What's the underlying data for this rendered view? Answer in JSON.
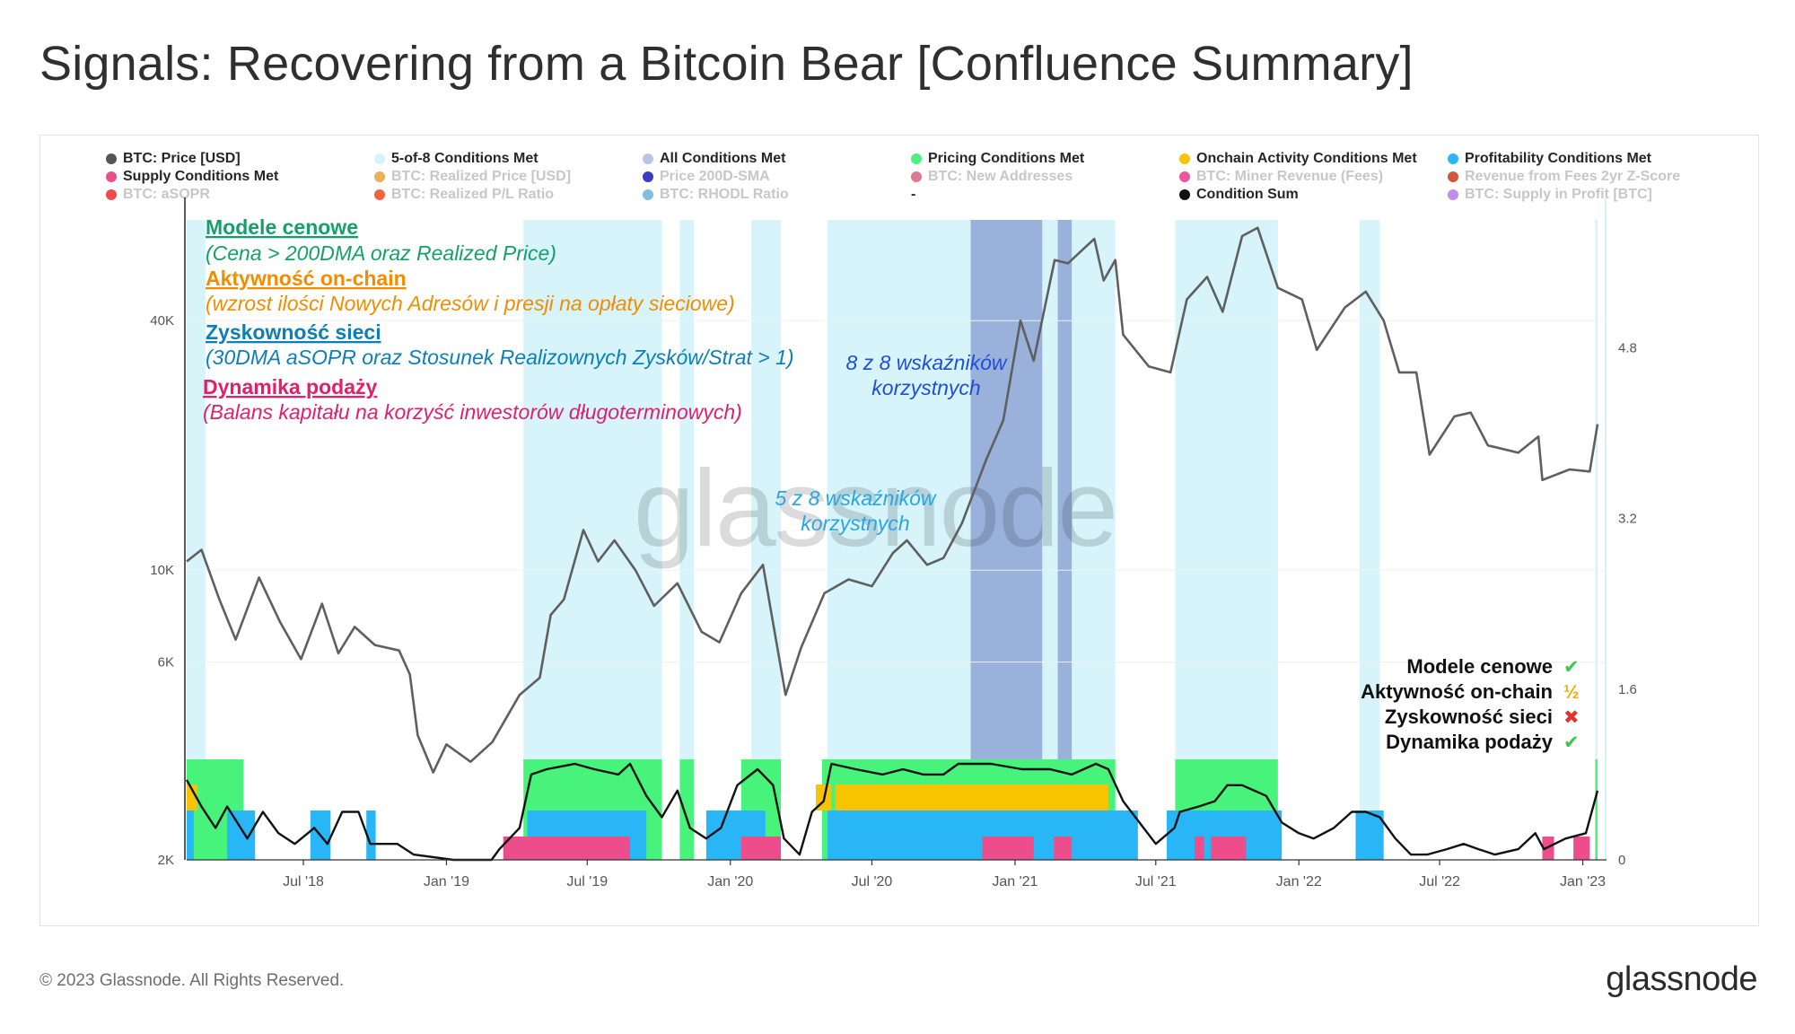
{
  "title": "Signals: Recovering from a Bitcoin Bear [Confluence Summary]",
  "legend": [
    {
      "label": "BTC: Price [USD]",
      "color": "#555555",
      "active": true
    },
    {
      "label": "5-of-8 Conditions Met",
      "color": "#d4f3fa",
      "active": true
    },
    {
      "label": "All Conditions Met",
      "color": "#b9c5e6",
      "active": true
    },
    {
      "label": "Pricing Conditions Met",
      "color": "#47f37a",
      "active": true
    },
    {
      "label": "Onchain Activity Conditions Met",
      "color": "#f6c400",
      "active": true
    },
    {
      "label": "Profitability Conditions Met",
      "color": "#29b6f6",
      "active": true
    },
    {
      "label": "Supply Conditions Met",
      "color": "#ee4d8b",
      "active": true
    },
    {
      "label": "BTC: Realized Price [USD]",
      "color": "#e8a23a",
      "active": false
    },
    {
      "label": "Price 200D-SMA",
      "color": "#1a1ab8",
      "active": false
    },
    {
      "label": "BTC: New Addresses",
      "color": "#d9607f",
      "active": false
    },
    {
      "label": "BTC: Miner Revenue (Fees)",
      "color": "#e8388f",
      "active": false
    },
    {
      "label": "Revenue from Fees 2yr Z-Score",
      "color": "#cc3a1a",
      "active": false
    },
    {
      "label": "BTC: aSOPR",
      "color": "#ee2a2a",
      "active": false
    },
    {
      "label": "BTC: Realized P/L Ratio",
      "color": "#f04a1a",
      "active": false
    },
    {
      "label": "BTC: RHODL Ratio",
      "color": "#6ab4d8",
      "active": false
    },
    {
      "label": "-",
      "color": "",
      "active": true
    },
    {
      "label": "Condition Sum",
      "color": "#111111",
      "active": true
    },
    {
      "label": "BTC: Supply in Profit [BTC]",
      "color": "#b47be8",
      "active": false
    }
  ],
  "annotations": {
    "pricing_title": "Modele cenowe",
    "pricing_desc": "(Cena > 200DMA oraz Realized Price)",
    "onchain_title": "Aktywność on-chain",
    "onchain_desc": "(wzrost ilości Nowych Adresów i presji na opłaty sieciowe)",
    "profit_title": "Zyskowność sieci",
    "profit_desc": "(30DMA aSOPR oraz Stosunek Realizownych Zysków/Strat > 1)",
    "supply_title": "Dynamika podaży",
    "supply_desc": "(Balans kapitału na korzyść inwestorów długoterminowych)",
    "eight_of_eight": [
      "8 z 8 wskaźników",
      "korzystnych"
    ],
    "five_of_eight": [
      "5 z 8 wskaźników",
      "korzystnych"
    ]
  },
  "status": [
    {
      "label": "Modele cenowe",
      "mark": "✔",
      "color": "#3cc94a"
    },
    {
      "label": "Aktywność on-chain",
      "mark": "½",
      "color": "#f6a800"
    },
    {
      "label": "Zyskowność sieci",
      "mark": "✖",
      "color": "#e8302a"
    },
    {
      "label": "Dynamika podaży",
      "mark": "✔",
      "color": "#3cc94a"
    }
  ],
  "watermark": "glassnode",
  "footer": {
    "copyright": "© 2023 Glassnode. All Rights Reserved.",
    "logo": "glassnode"
  },
  "chart_data": {
    "type": "line",
    "title": "Signals: Recovering from a Bitcoin Bear [Confluence Summary]",
    "x_range": [
      "2018-02-01",
      "2023-01-20"
    ],
    "x_ticks": [
      {
        "label": "Jul '18",
        "date": "2018-07-01"
      },
      {
        "label": "Jan '19",
        "date": "2019-01-01"
      },
      {
        "label": "Jul '19",
        "date": "2019-07-01"
      },
      {
        "label": "Jan '20",
        "date": "2020-01-01"
      },
      {
        "label": "Jul '20",
        "date": "2020-07-01"
      },
      {
        "label": "Jan '21",
        "date": "2021-01-01"
      },
      {
        "label": "Jul '21",
        "date": "2021-07-01"
      },
      {
        "label": "Jan '22",
        "date": "2022-01-01"
      },
      {
        "label": "Jul '22",
        "date": "2022-07-01"
      },
      {
        "label": "Jan '23",
        "date": "2023-01-01"
      }
    ],
    "y_left": {
      "scale": "log",
      "ticks": [
        {
          "label": "2K",
          "value": 2000
        },
        {
          "label": "6K",
          "value": 6000
        },
        {
          "label": "10K",
          "value": 10000
        },
        {
          "label": "40K",
          "value": 40000
        }
      ],
      "range": [
        2000,
        70000
      ]
    },
    "y_right": {
      "scale": "linear",
      "ticks": [
        {
          "label": "0",
          "value": 0
        },
        {
          "label": "1.6",
          "value": 1.6
        },
        {
          "label": "3.2",
          "value": 3.2
        },
        {
          "label": "4.8",
          "value": 4.8
        }
      ],
      "range": [
        0,
        6
      ]
    },
    "price_series": {
      "name": "BTC: Price [USD]",
      "points": [
        [
          "2018-02-01",
          10500
        ],
        [
          "2018-02-20",
          11200
        ],
        [
          "2018-03-15",
          8500
        ],
        [
          "2018-04-05",
          6800
        ],
        [
          "2018-05-05",
          9600
        ],
        [
          "2018-06-01",
          7500
        ],
        [
          "2018-06-28",
          6100
        ],
        [
          "2018-07-25",
          8300
        ],
        [
          "2018-08-15",
          6300
        ],
        [
          "2018-09-05",
          7300
        ],
        [
          "2018-10-01",
          6600
        ],
        [
          "2018-11-01",
          6400
        ],
        [
          "2018-11-15",
          5600
        ],
        [
          "2018-11-25",
          4000
        ],
        [
          "2018-12-15",
          3250
        ],
        [
          "2019-01-01",
          3800
        ],
        [
          "2019-02-01",
          3450
        ],
        [
          "2019-03-01",
          3850
        ],
        [
          "2019-04-05",
          5000
        ],
        [
          "2019-05-01",
          5500
        ],
        [
          "2019-05-15",
          7800
        ],
        [
          "2019-06-01",
          8500
        ],
        [
          "2019-06-26",
          12500
        ],
        [
          "2019-07-15",
          10500
        ],
        [
          "2019-08-05",
          11800
        ],
        [
          "2019-09-01",
          10000
        ],
        [
          "2019-09-25",
          8200
        ],
        [
          "2019-10-25",
          9300
        ],
        [
          "2019-11-25",
          7100
        ],
        [
          "2019-12-18",
          6700
        ],
        [
          "2020-01-15",
          8800
        ],
        [
          "2020-02-12",
          10300
        ],
        [
          "2020-03-12",
          5000
        ],
        [
          "2020-04-01",
          6500
        ],
        [
          "2020-05-01",
          8800
        ],
        [
          "2020-06-01",
          9500
        ],
        [
          "2020-07-01",
          9150
        ],
        [
          "2020-07-28",
          11000
        ],
        [
          "2020-08-15",
          11800
        ],
        [
          "2020-09-10",
          10300
        ],
        [
          "2020-10-01",
          10700
        ],
        [
          "2020-10-25",
          13000
        ],
        [
          "2020-11-25",
          18500
        ],
        [
          "2020-12-17",
          23000
        ],
        [
          "2021-01-08",
          40000
        ],
        [
          "2021-01-25",
          32000
        ],
        [
          "2021-02-21",
          56000
        ],
        [
          "2021-03-10",
          55000
        ],
        [
          "2021-04-13",
          63000
        ],
        [
          "2021-04-25",
          50000
        ],
        [
          "2021-05-10",
          56000
        ],
        [
          "2021-05-20",
          37000
        ],
        [
          "2021-06-22",
          31000
        ],
        [
          "2021-07-20",
          30000
        ],
        [
          "2021-08-10",
          45000
        ],
        [
          "2021-09-05",
          51000
        ],
        [
          "2021-09-25",
          42000
        ],
        [
          "2021-10-20",
          64000
        ],
        [
          "2021-11-09",
          67000
        ],
        [
          "2021-12-05",
          48000
        ],
        [
          "2022-01-05",
          45000
        ],
        [
          "2022-01-24",
          34000
        ],
        [
          "2022-03-01",
          43000
        ],
        [
          "2022-03-28",
          47000
        ],
        [
          "2022-04-20",
          40000
        ],
        [
          "2022-05-10",
          30000
        ],
        [
          "2022-06-01",
          30000
        ],
        [
          "2022-06-18",
          19000
        ],
        [
          "2022-07-20",
          23500
        ],
        [
          "2022-08-10",
          24000
        ],
        [
          "2022-09-01",
          20000
        ],
        [
          "2022-10-10",
          19200
        ],
        [
          "2022-11-05",
          21000
        ],
        [
          "2022-11-10",
          16500
        ],
        [
          "2022-12-15",
          17500
        ],
        [
          "2023-01-10",
          17300
        ],
        [
          "2023-01-20",
          22500
        ]
      ]
    },
    "condition_sum": {
      "name": "Condition Sum",
      "points": [
        [
          "2018-02-01",
          0.75
        ],
        [
          "2018-02-20",
          0.5
        ],
        [
          "2018-03-10",
          0.3
        ],
        [
          "2018-03-25",
          0.5
        ],
        [
          "2018-04-20",
          0.2
        ],
        [
          "2018-05-10",
          0.45
        ],
        [
          "2018-05-30",
          0.25
        ],
        [
          "2018-06-20",
          0.15
        ],
        [
          "2018-07-15",
          0.3
        ],
        [
          "2018-08-01",
          0.15
        ],
        [
          "2018-08-20",
          0.45
        ],
        [
          "2018-09-10",
          0.45
        ],
        [
          "2018-09-25",
          0.15
        ],
        [
          "2018-10-30",
          0.15
        ],
        [
          "2018-11-20",
          0.05
        ],
        [
          "2019-01-10",
          0.0
        ],
        [
          "2019-02-28",
          0.0
        ],
        [
          "2019-03-10",
          0.1
        ],
        [
          "2019-04-05",
          0.3
        ],
        [
          "2019-04-20",
          0.8
        ],
        [
          "2019-05-10",
          0.85
        ],
        [
          "2019-06-15",
          0.9
        ],
        [
          "2019-07-10",
          0.85
        ],
        [
          "2019-08-10",
          0.8
        ],
        [
          "2019-08-25",
          0.9
        ],
        [
          "2019-09-15",
          0.6
        ],
        [
          "2019-10-05",
          0.4
        ],
        [
          "2019-10-25",
          0.65
        ],
        [
          "2019-11-10",
          0.3
        ],
        [
          "2019-12-01",
          0.2
        ],
        [
          "2019-12-20",
          0.3
        ],
        [
          "2020-01-10",
          0.7
        ],
        [
          "2020-02-05",
          0.85
        ],
        [
          "2020-02-25",
          0.7
        ],
        [
          "2020-03-10",
          0.2
        ],
        [
          "2020-03-30",
          0.05
        ],
        [
          "2020-04-15",
          0.45
        ],
        [
          "2020-04-30",
          0.55
        ],
        [
          "2020-05-10",
          0.9
        ],
        [
          "2020-06-10",
          0.85
        ],
        [
          "2020-07-15",
          0.8
        ],
        [
          "2020-08-10",
          0.85
        ],
        [
          "2020-09-05",
          0.8
        ],
        [
          "2020-10-01",
          0.8
        ],
        [
          "2020-10-20",
          0.9
        ],
        [
          "2020-12-01",
          0.9
        ],
        [
          "2021-01-10",
          0.85
        ],
        [
          "2021-02-15",
          0.85
        ],
        [
          "2021-03-15",
          0.8
        ],
        [
          "2021-04-15",
          0.9
        ],
        [
          "2021-05-01",
          0.85
        ],
        [
          "2021-05-20",
          0.55
        ],
        [
          "2021-06-10",
          0.35
        ],
        [
          "2021-07-01",
          0.15
        ],
        [
          "2021-07-25",
          0.3
        ],
        [
          "2021-08-01",
          0.45
        ],
        [
          "2021-08-25",
          0.5
        ],
        [
          "2021-09-15",
          0.55
        ],
        [
          "2021-10-01",
          0.7
        ],
        [
          "2021-10-20",
          0.7
        ],
        [
          "2021-11-20",
          0.6
        ],
        [
          "2021-12-10",
          0.35
        ],
        [
          "2022-01-01",
          0.25
        ],
        [
          "2022-01-20",
          0.2
        ],
        [
          "2022-02-15",
          0.3
        ],
        [
          "2022-03-10",
          0.45
        ],
        [
          "2022-03-28",
          0.45
        ],
        [
          "2022-04-15",
          0.4
        ],
        [
          "2022-05-05",
          0.2
        ],
        [
          "2022-05-25",
          0.05
        ],
        [
          "2022-06-15",
          0.05
        ],
        [
          "2022-07-10",
          0.1
        ],
        [
          "2022-08-01",
          0.15
        ],
        [
          "2022-08-20",
          0.1
        ],
        [
          "2022-09-10",
          0.05
        ],
        [
          "2022-10-10",
          0.1
        ],
        [
          "2022-11-01",
          0.25
        ],
        [
          "2022-11-12",
          0.1
        ],
        [
          "2022-12-10",
          0.2
        ],
        [
          "2023-01-05",
          0.25
        ],
        [
          "2023-01-20",
          0.65
        ]
      ]
    },
    "bands": {
      "five_of_eight": [
        [
          "2018-02-01",
          "2018-02-25"
        ],
        [
          "2019-04-10",
          "2019-10-05"
        ],
        [
          "2019-10-28",
          "2019-11-15"
        ],
        [
          "2020-01-28",
          "2020-03-06"
        ],
        [
          "2020-05-05",
          "2021-05-10"
        ],
        [
          "2021-07-26",
          "2021-12-05"
        ],
        [
          "2022-03-20",
          "2022-04-15"
        ],
        [
          "2023-01-17",
          "2023-01-20"
        ]
      ],
      "all_conditions": [
        [
          "2020-11-05",
          "2021-02-05"
        ],
        [
          "2021-02-25",
          "2021-03-15"
        ]
      ],
      "pricing": [
        [
          "2018-02-01",
          "2018-04-15"
        ],
        [
          "2019-04-10",
          "2019-10-05"
        ],
        [
          "2019-10-28",
          "2019-11-15"
        ],
        [
          "2020-01-15",
          "2020-03-06"
        ],
        [
          "2020-04-28",
          "2021-05-10"
        ],
        [
          "2021-07-26",
          "2021-12-05"
        ],
        [
          "2023-01-17",
          "2023-01-20"
        ]
      ],
      "onchain": [
        [
          "2018-02-01",
          "2018-02-15"
        ],
        [
          "2020-04-20",
          "2020-05-10"
        ],
        [
          "2020-05-15",
          "2021-05-01"
        ]
      ],
      "profitability": [
        [
          "2018-02-01",
          "2018-02-10"
        ],
        [
          "2018-03-25",
          "2018-04-30"
        ],
        [
          "2018-07-10",
          "2018-08-05"
        ],
        [
          "2018-09-20",
          "2018-10-02"
        ],
        [
          "2019-04-15",
          "2019-09-15"
        ],
        [
          "2019-12-01",
          "2020-02-15"
        ],
        [
          "2020-05-05",
          "2021-06-08"
        ],
        [
          "2021-07-15",
          "2021-12-10"
        ],
        [
          "2022-03-15",
          "2022-04-20"
        ]
      ],
      "supply": [
        [
          "2019-03-15",
          "2019-08-25"
        ],
        [
          "2020-01-15",
          "2020-03-06"
        ],
        [
          "2020-11-20",
          "2021-01-25"
        ],
        [
          "2021-02-20",
          "2021-03-15"
        ],
        [
          "2021-08-20",
          "2021-09-01"
        ],
        [
          "2021-09-10",
          "2021-10-25"
        ],
        [
          "2022-11-10",
          "2022-11-25"
        ],
        [
          "2022-12-20",
          "2023-01-10"
        ]
      ]
    }
  }
}
